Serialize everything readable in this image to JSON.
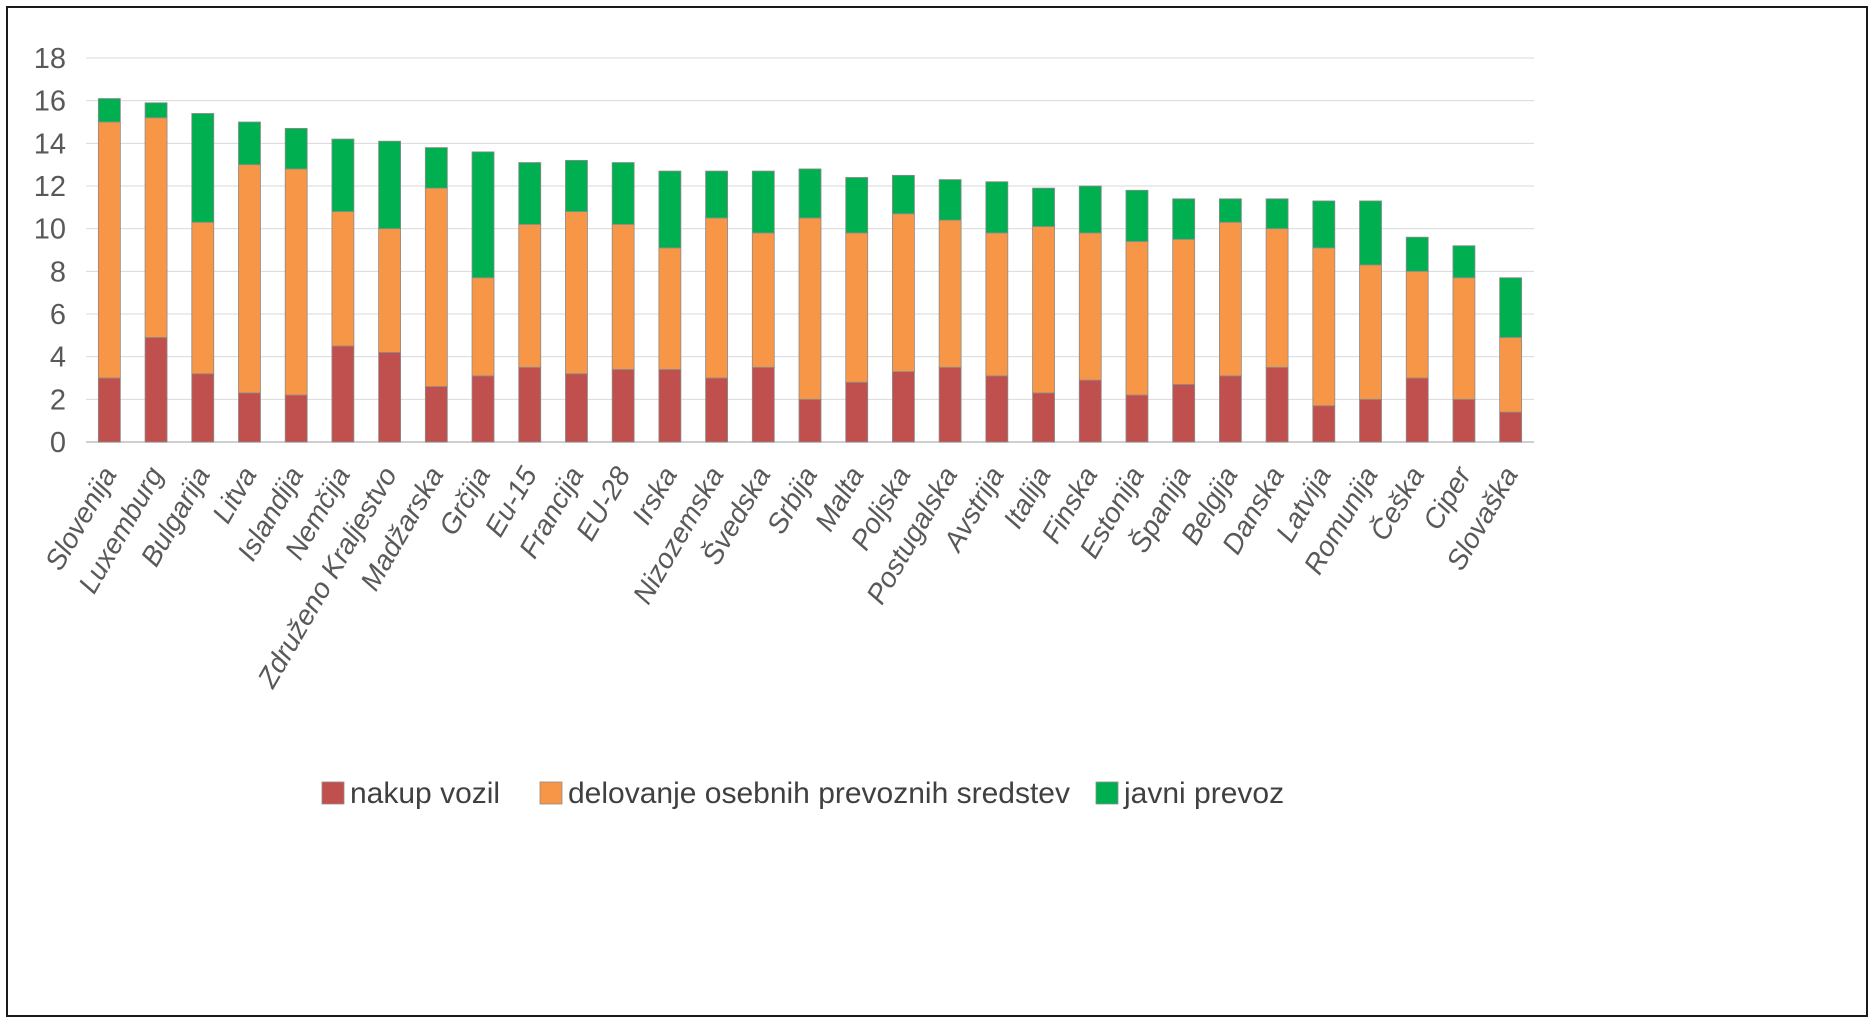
{
  "chart_data": {
    "type": "bar",
    "stacked": true,
    "title": "",
    "xlabel": "",
    "ylabel": "",
    "ylim": [
      0,
      18
    ],
    "yticks": [
      0,
      2,
      4,
      6,
      8,
      10,
      12,
      14,
      16,
      18
    ],
    "grid": true,
    "legend_position": "bottom",
    "categories": [
      "Slovenija",
      "Luxemburg",
      "Bulgarija",
      "Litva",
      "Islandija",
      "Nemčija",
      "Združeno Kraljestvo",
      "Madžarska",
      "Grčija",
      "Eu-15",
      "Francija",
      "EU-28",
      "Irska",
      "Nizozemska",
      "Švedska",
      "Srbija",
      "Malta",
      "Poljska",
      "Postugalska",
      "Avstrija",
      "Italija",
      "Finska",
      "Estonija",
      "Španija",
      "Belgija",
      "Danska",
      "Latvija",
      "Romunija",
      "Češka",
      "Ciper",
      "Slovaška"
    ],
    "series": [
      {
        "name": "nakup vozil",
        "color": "#c0504d",
        "values": [
          3.0,
          4.9,
          3.2,
          2.3,
          2.2,
          4.5,
          4.2,
          2.6,
          3.1,
          3.5,
          3.2,
          3.4,
          3.4,
          3.0,
          3.5,
          2.0,
          2.8,
          3.3,
          3.5,
          3.1,
          2.3,
          2.9,
          2.2,
          2.7,
          3.1,
          3.5,
          1.7,
          2.0,
          3.0,
          2.0,
          1.4
        ]
      },
      {
        "name": "delovanje osebnih prevoznih sredstev",
        "color": "#f79646",
        "values": [
          12.0,
          10.3,
          7.1,
          10.7,
          10.6,
          6.3,
          5.8,
          9.3,
          4.6,
          6.7,
          7.6,
          6.8,
          5.7,
          7.5,
          6.3,
          8.5,
          7.0,
          7.4,
          6.9,
          6.7,
          7.8,
          6.9,
          7.2,
          6.8,
          7.2,
          6.5,
          7.4,
          6.3,
          5.0,
          5.7,
          3.5
        ]
      },
      {
        "name": "javni prevoz",
        "color": "#00b050",
        "values": [
          1.1,
          0.7,
          5.1,
          2.0,
          1.9,
          3.4,
          4.1,
          1.9,
          5.9,
          2.9,
          2.4,
          2.9,
          3.6,
          2.2,
          2.9,
          2.3,
          2.6,
          1.8,
          1.9,
          2.4,
          1.8,
          2.2,
          2.4,
          1.9,
          1.1,
          1.4,
          2.2,
          3.0,
          1.6,
          1.5,
          2.8
        ]
      }
    ]
  }
}
